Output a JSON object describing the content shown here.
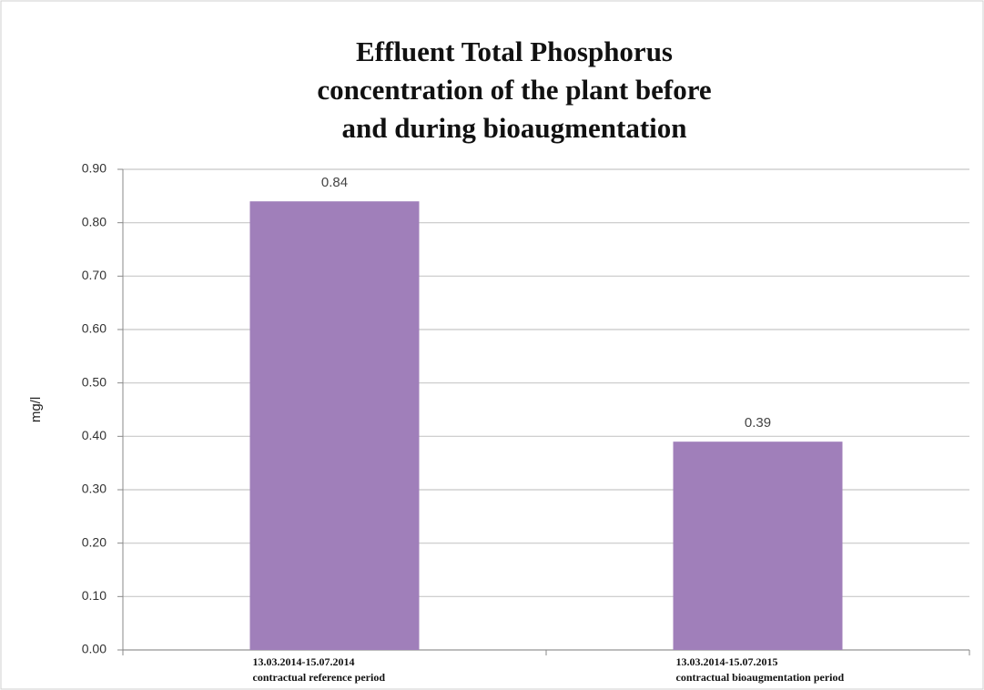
{
  "chart_data": {
    "type": "bar",
    "title": [
      "Effluent Total Phosphorus",
      "concentration of the plant before",
      "and during bioaugmentation"
    ],
    "y_label": "mg/l",
    "categories": [
      [
        "13.03.2014-15.07.2014",
        "contractual reference period"
      ],
      [
        "13.03.2014-15.07.2015",
        "contractual bioaugmentation period"
      ]
    ],
    "values": [
      0.84,
      0.39
    ],
    "color": "#a07fba",
    "ylim": [
      0,
      0.9
    ],
    "yticks": [
      {
        "value": 0,
        "label": "0.00"
      },
      {
        "value": 0.1,
        "label": "0.10"
      },
      {
        "value": 0.2,
        "label": "0.20"
      },
      {
        "value": 0.3,
        "label": "0.30"
      },
      {
        "value": 0.4,
        "label": "0.40"
      },
      {
        "value": 0.5,
        "label": "0.50"
      },
      {
        "value": 0.6,
        "label": "0.60"
      },
      {
        "value": 0.7,
        "label": "0.70"
      },
      {
        "value": 0.8,
        "label": "0.80"
      },
      {
        "value": 0.9,
        "label": "0.90"
      }
    ],
    "grid": true
  }
}
